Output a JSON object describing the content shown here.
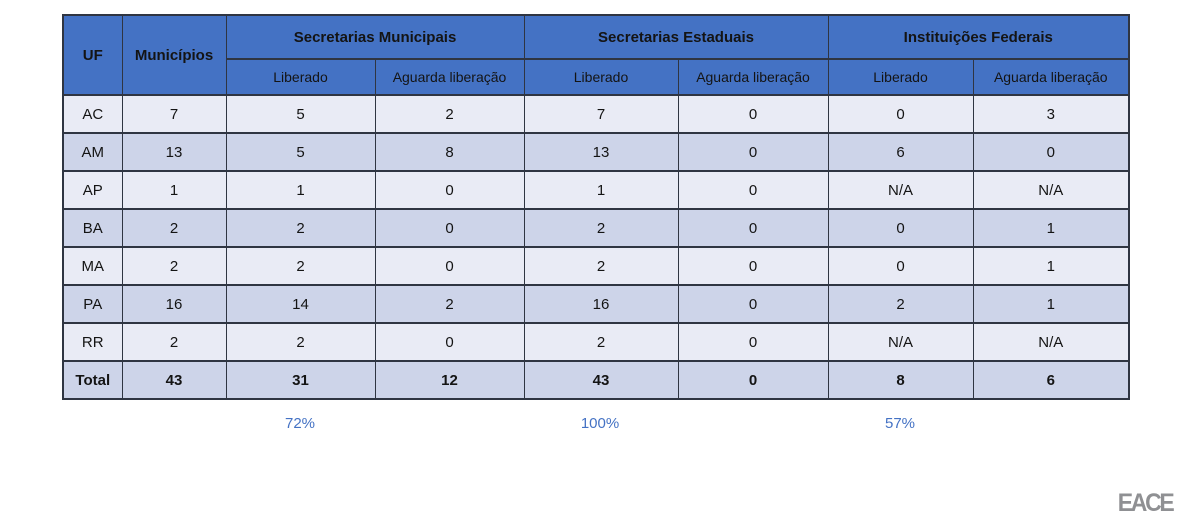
{
  "table": {
    "header": {
      "uf": "UF",
      "municipios": "Municípios",
      "groups": [
        {
          "label": "Secretarias Municipais",
          "columns": [
            "Liberado",
            "Aguarda liberação"
          ]
        },
        {
          "label": "Secretarias Estaduais",
          "columns": [
            "Liberado",
            "Aguarda liberação"
          ]
        },
        {
          "label": "Instituições Federais",
          "columns": [
            "Liberado",
            "Aguarda liberação"
          ]
        }
      ]
    },
    "rows": [
      {
        "uf": "AC",
        "cells": [
          "7",
          "5",
          "2",
          "7",
          "0",
          "0",
          "3"
        ]
      },
      {
        "uf": "AM",
        "cells": [
          "13",
          "5",
          "8",
          "13",
          "0",
          "6",
          "0"
        ]
      },
      {
        "uf": "AP",
        "cells": [
          "1",
          "1",
          "0",
          "1",
          "0",
          "N/A",
          "N/A"
        ]
      },
      {
        "uf": "BA",
        "cells": [
          "2",
          "2",
          "0",
          "2",
          "0",
          "0",
          "1"
        ]
      },
      {
        "uf": "MA",
        "cells": [
          "2",
          "2",
          "0",
          "2",
          "0",
          "0",
          "1"
        ]
      },
      {
        "uf": "PA",
        "cells": [
          "16",
          "14",
          "2",
          "16",
          "0",
          "2",
          "1"
        ]
      },
      {
        "uf": "RR",
        "cells": [
          "2",
          "2",
          "0",
          "2",
          "0",
          "N/A",
          "N/A"
        ]
      }
    ],
    "total_row": {
      "uf": "Total",
      "cells": [
        "43",
        "31",
        "12",
        "43",
        "0",
        "8",
        "6"
      ]
    }
  },
  "summary_percentages": [
    {
      "group": "Secretarias Municipais",
      "value": "72%"
    },
    {
      "group": "Secretarias Estaduais",
      "value": "100%"
    },
    {
      "group": "Instituições Federais",
      "value": "57%"
    }
  ],
  "logo": {
    "text": "EACE"
  },
  "colors": {
    "header_fill": "#4472C4",
    "band_light": "#E9EBF5",
    "band_dark": "#CDD4E9",
    "border": "#2F3542",
    "percent_text": "#4472C4",
    "logo_gray": "#8F9093"
  },
  "chart_data": {
    "type": "table",
    "columns": [
      "UF",
      "Municípios",
      "Secretarias Municipais - Liberado",
      "Secretarias Municipais - Aguarda liberação",
      "Secretarias Estaduais - Liberado",
      "Secretarias Estaduais - Aguarda liberação",
      "Instituições Federais - Liberado",
      "Instituições Federais - Aguarda liberação"
    ],
    "rows": [
      [
        "AC",
        7,
        5,
        2,
        7,
        0,
        0,
        3
      ],
      [
        "AM",
        13,
        5,
        8,
        13,
        0,
        6,
        0
      ],
      [
        "AP",
        1,
        1,
        0,
        1,
        0,
        "N/A",
        "N/A"
      ],
      [
        "BA",
        2,
        2,
        0,
        2,
        0,
        0,
        1
      ],
      [
        "MA",
        2,
        2,
        0,
        2,
        0,
        0,
        1
      ],
      [
        "PA",
        16,
        14,
        2,
        16,
        0,
        2,
        1
      ],
      [
        "RR",
        2,
        2,
        0,
        2,
        0,
        "N/A",
        "N/A"
      ]
    ],
    "totals": [
      "Total",
      43,
      31,
      12,
      43,
      0,
      8,
      6
    ],
    "percent_liberado": {
      "Secretarias Municipais": "72%",
      "Secretarias Estaduais": "100%",
      "Instituições Federais": "57%"
    }
  }
}
